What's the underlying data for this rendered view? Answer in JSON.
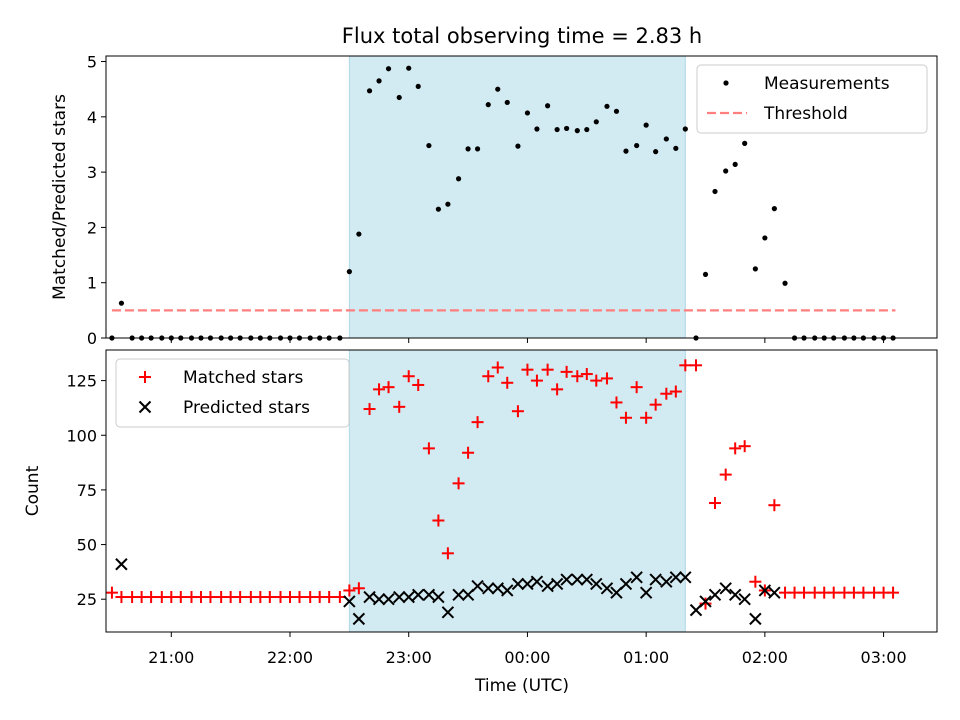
{
  "figure": {
    "title": "Flux total observing time = 2.83 h",
    "xlabel": "Time (UTC)",
    "xticks": [
      "21:00",
      "22:00",
      "23:00",
      "00:00",
      "01:00",
      "02:00",
      "03:00"
    ]
  },
  "colors": {
    "measurement": "#000000",
    "threshold": "#ff7f7f",
    "matched": "#ff0000",
    "predicted": "#000000",
    "observing_span": "#add8e6"
  },
  "chart_data": [
    {
      "type": "scatter",
      "ylabel": "Matched/Predicted stars",
      "xlim": [
        20.45,
        27.45
      ],
      "ylim": [
        0,
        5.1
      ],
      "yticks": [
        0,
        1,
        2,
        3,
        4,
        5
      ],
      "legend_position": "top-right",
      "observing_span": [
        22.5,
        25.33
      ],
      "series": [
        {
          "name": "Measurements",
          "marker": "dot",
          "x": [
            20.5,
            20.58,
            20.67,
            20.75,
            20.83,
            20.92,
            21.0,
            21.08,
            21.17,
            21.25,
            21.33,
            21.42,
            21.5,
            21.58,
            21.67,
            21.75,
            21.83,
            21.92,
            22.0,
            22.08,
            22.17,
            22.25,
            22.33,
            22.42,
            22.5,
            22.58,
            22.67,
            22.75,
            22.83,
            22.92,
            23.0,
            23.08,
            23.17,
            23.25,
            23.33,
            23.42,
            23.5,
            23.58,
            23.67,
            23.75,
            23.83,
            23.92,
            24.0,
            24.08,
            24.17,
            24.25,
            24.33,
            24.42,
            24.5,
            24.58,
            24.67,
            24.75,
            24.83,
            24.92,
            25.0,
            25.08,
            25.17,
            25.25,
            25.33,
            25.42,
            25.5,
            25.58,
            25.67,
            25.75,
            25.83,
            25.92,
            26.0,
            26.08,
            26.17,
            26.25,
            26.33,
            26.42,
            26.5,
            26.58,
            26.67,
            26.75,
            26.83,
            26.92,
            27.0,
            27.08
          ],
          "y": [
            0,
            0.63,
            0,
            0,
            0,
            0,
            0,
            0,
            0,
            0,
            0,
            0,
            0,
            0,
            0,
            0,
            0,
            0,
            0,
            0,
            0,
            0,
            0,
            0,
            1.2,
            1.88,
            4.47,
            4.65,
            4.87,
            4.35,
            4.88,
            4.55,
            3.48,
            2.33,
            2.42,
            2.88,
            3.42,
            3.42,
            4.22,
            4.5,
            4.26,
            3.47,
            4.07,
            3.78,
            4.2,
            3.77,
            3.79,
            3.75,
            3.77,
            3.91,
            4.19,
            4.1,
            3.38,
            3.48,
            3.85,
            3.37,
            3.6,
            3.43,
            3.78,
            0,
            1.15,
            2.65,
            3.02,
            3.14,
            3.52,
            1.25,
            1.81,
            2.34,
            0.99,
            0,
            0,
            0,
            0,
            0,
            0,
            0,
            0,
            0,
            0,
            0
          ]
        },
        {
          "name": "Threshold",
          "marker": "dashed-line",
          "x": [
            20.5,
            27.1
          ],
          "y": [
            0.5,
            0.5
          ]
        }
      ]
    },
    {
      "type": "scatter",
      "ylabel": "Count",
      "xlim": [
        20.45,
        27.45
      ],
      "ylim": [
        10,
        139
      ],
      "yticks": [
        25,
        50,
        75,
        100,
        125
      ],
      "legend_position": "top-left",
      "observing_span": [
        22.5,
        25.33
      ],
      "series": [
        {
          "name": "Matched stars",
          "marker": "plus",
          "x": [
            20.5,
            20.58,
            20.67,
            20.75,
            20.83,
            20.92,
            21.0,
            21.08,
            21.17,
            21.25,
            21.33,
            21.42,
            21.5,
            21.58,
            21.67,
            21.75,
            21.83,
            21.92,
            22.0,
            22.08,
            22.17,
            22.25,
            22.33,
            22.42,
            22.5,
            22.58,
            22.67,
            22.75,
            22.83,
            22.92,
            23.0,
            23.08,
            23.17,
            23.25,
            23.33,
            23.42,
            23.5,
            23.58,
            23.67,
            23.75,
            23.83,
            23.92,
            24.0,
            24.08,
            24.17,
            24.25,
            24.33,
            24.42,
            24.5,
            24.58,
            24.67,
            24.75,
            24.83,
            24.92,
            25.0,
            25.08,
            25.17,
            25.25,
            25.33,
            25.42,
            25.5,
            25.58,
            25.67,
            25.75,
            25.83,
            25.92,
            26.0,
            26.08,
            26.17,
            26.25,
            26.33,
            26.42,
            26.5,
            26.58,
            26.67,
            26.75,
            26.83,
            26.92,
            27.0,
            27.08
          ],
          "y": [
            28,
            26,
            26,
            26,
            26,
            26,
            26,
            26,
            26,
            26,
            26,
            26,
            26,
            26,
            26,
            26,
            26,
            26,
            26,
            26,
            26,
            26,
            26,
            26,
            29,
            30,
            112,
            121,
            122,
            113,
            127,
            123,
            94,
            61,
            46,
            78,
            92,
            106,
            127,
            131,
            124,
            111,
            130,
            125,
            130,
            121,
            129,
            127,
            128,
            125,
            126,
            115,
            108,
            122,
            108,
            114,
            119,
            120,
            132,
            132,
            23,
            69,
            82,
            94,
            95,
            33,
            29,
            68,
            28,
            28,
            28,
            28,
            28,
            28,
            28,
            28,
            28,
            28,
            28,
            28
          ]
        },
        {
          "name": "Predicted stars",
          "marker": "x",
          "x": [
            20.58,
            22.5,
            22.58,
            22.67,
            22.75,
            22.83,
            22.92,
            23.0,
            23.08,
            23.17,
            23.25,
            23.33,
            23.42,
            23.5,
            23.58,
            23.67,
            23.75,
            23.83,
            23.92,
            24.0,
            24.08,
            24.17,
            24.25,
            24.33,
            24.42,
            24.5,
            24.58,
            24.67,
            24.75,
            24.83,
            24.92,
            25.0,
            25.08,
            25.17,
            25.25,
            25.33,
            25.42,
            25.5,
            25.58,
            25.67,
            25.75,
            25.83,
            25.92,
            26.0,
            26.08
          ],
          "y": [
            41,
            24,
            16,
            26,
            25,
            25,
            26,
            26,
            27,
            27,
            26,
            19,
            27,
            27,
            31,
            30,
            30,
            29,
            32,
            32,
            33,
            31,
            32,
            34,
            34,
            34,
            32,
            30,
            28,
            32,
            35,
            28,
            34,
            33,
            35,
            35,
            20,
            24,
            27,
            30,
            27,
            25,
            16,
            29,
            28
          ]
        }
      ]
    }
  ]
}
